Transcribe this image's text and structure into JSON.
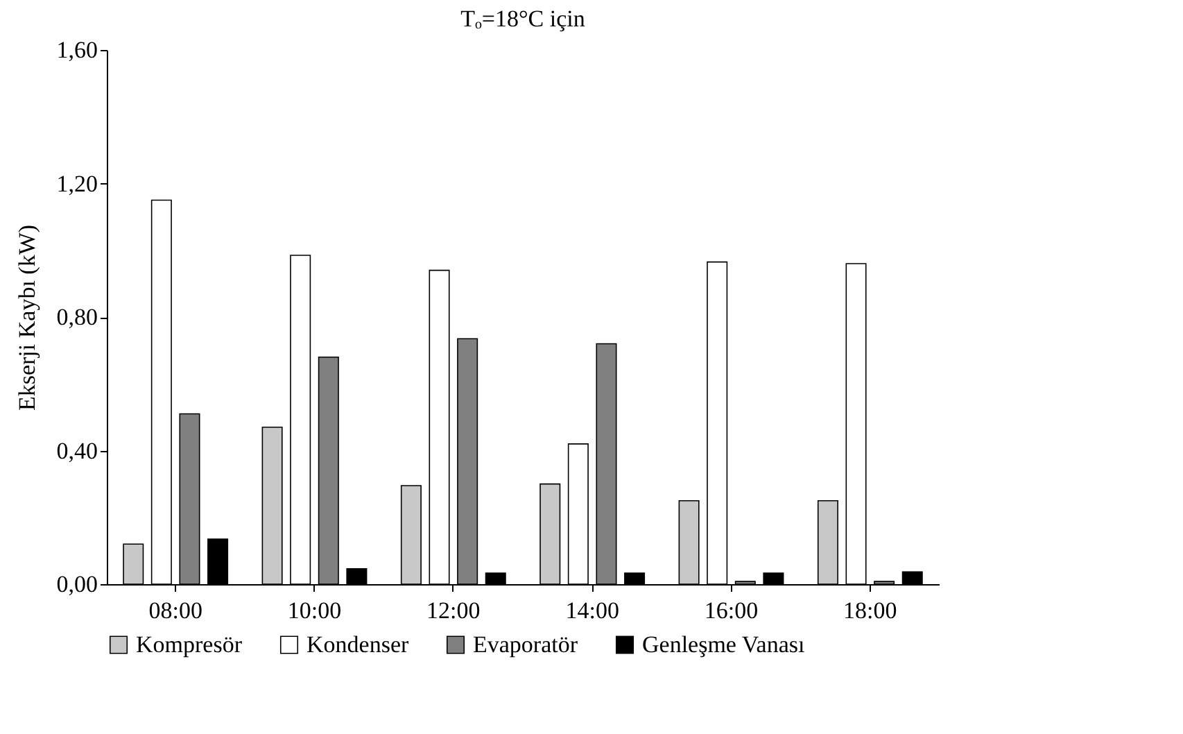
{
  "chart_data": {
    "type": "bar",
    "title": "Tₒ=18°C için",
    "ylabel": "Ekserji Kaybı (kW)",
    "categories": [
      "08:00",
      "10:00",
      "12:00",
      "14:00",
      "16:00",
      "18:00"
    ],
    "series": [
      {
        "name": "Kompresör",
        "color": "#c8c8c8",
        "values": [
          0.12,
          0.47,
          0.295,
          0.3,
          0.25,
          0.25
        ]
      },
      {
        "name": "Kondenser",
        "color": "#ffffff",
        "values": [
          1.15,
          0.985,
          0.94,
          0.42,
          0.965,
          0.96
        ]
      },
      {
        "name": "Evaporatör",
        "color": "#808080",
        "values": [
          0.51,
          0.68,
          0.735,
          0.72,
          0.008,
          0.008
        ]
      },
      {
        "name": "Genleşme Vanası",
        "color": "#000000",
        "values": [
          0.135,
          0.046,
          0.033,
          0.033,
          0.033,
          0.037
        ]
      }
    ],
    "ylim": [
      0,
      1.6
    ],
    "yticks": [
      {
        "value": 0,
        "label": "0,00"
      },
      {
        "value": 0.4,
        "label": "0,40"
      },
      {
        "value": 0.8,
        "label": "0,80"
      },
      {
        "value": 1.2,
        "label": "1,20"
      },
      {
        "value": 1.6,
        "label": "1,60"
      }
    ],
    "grid": false,
    "legend": "bottom"
  }
}
